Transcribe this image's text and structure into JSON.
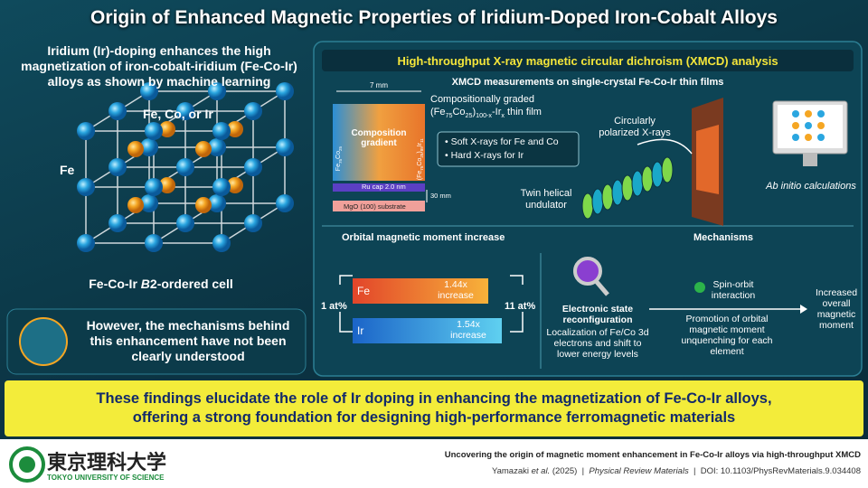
{
  "title": "Origin of Enhanced Magnetic Properties of Iridium-Doped Iron-Cobalt Alloys",
  "left": {
    "intro": "Iridium (Ir)-doping enhances the high magnetization of iron-cobalt-iridium (Fe-Co-Ir) alloys as shown by machine learning",
    "label_fe_co_ir": "Fe, Co, or Ir",
    "label_fe": "Fe",
    "caption": [
      "Fe-Co-Ir ",
      "B",
      "2-ordered cell"
    ],
    "note": "However, the mechanisms behind this enhancement have not been clearly understood"
  },
  "xmcd": {
    "header": "High-throughput X-ray magnetic circular dichroism (XMCD) analysis",
    "subheader": "XMCD measurements on single-crystal Fe-Co-Ir thin films",
    "film": {
      "width_label": "7 mm",
      "gradient_label": "Composition gradient",
      "left_edge": [
        "Fe",
        "75",
        "Co",
        "25"
      ],
      "right_edge": [
        "(Fe",
        "75",
        "Co",
        "25",
        ")",
        "89",
        "Ir",
        "11"
      ],
      "ru_cap": "Ru cap 2.0 nm",
      "thickness": "30 mm",
      "substrate": "MgO (100) substrate",
      "label_line1": "Compositionally graded",
      "label_line2": [
        "(Fe",
        "75",
        "Co",
        "25",
        ")",
        "100-x",
        "-Ir",
        "x",
        " thin film"
      ]
    },
    "bullets": [
      "Soft X-rays for Fe and Co",
      "Hard X-rays for Ir"
    ],
    "xray_label": "Circularly polarized X-rays",
    "undulator": "Twin helical undulator",
    "calc": "Ab initio calculations"
  },
  "orbital": {
    "header": "Orbital magnetic moment increase",
    "left_label": "1 at%",
    "right_label": "11 at%",
    "bars": [
      {
        "element": "Fe",
        "value": "1.44x increase"
      },
      {
        "element": "Ir",
        "value": "1.54x increase"
      }
    ]
  },
  "mechanisms": {
    "header": "Mechanisms",
    "step1_title": "Electronic state reconfiguration",
    "step1_text": "Localization of Fe/Co 3d electrons and shift to lower energy levels",
    "spin_orbit": "Spin-orbit interaction",
    "step2_text": "Promotion of orbital magnetic moment unquenching for each element",
    "result": "Increased overall magnetic moment"
  },
  "conclusion": [
    "These findings elucidate the role of Ir doping in enhancing the magnetization of Fe-Co-Ir alloys,",
    "offering a strong foundation for designing high-performance ferromagnetic materials"
  ],
  "footer": {
    "university_jp": "東京理科大学",
    "university_en": "TOKYO UNIVERSITY OF SCIENCE",
    "paper_title": "Uncovering the origin of magnetic moment enhancement in Fe-Co-Ir alloys via high-throughput XMCD",
    "citation": [
      "Yamazaki ",
      "et al.",
      " (2025)  |  ",
      "Physical Review Materials",
      "  |  DOI: 10.1103/PhysRevMaterials.9.034408"
    ]
  }
}
